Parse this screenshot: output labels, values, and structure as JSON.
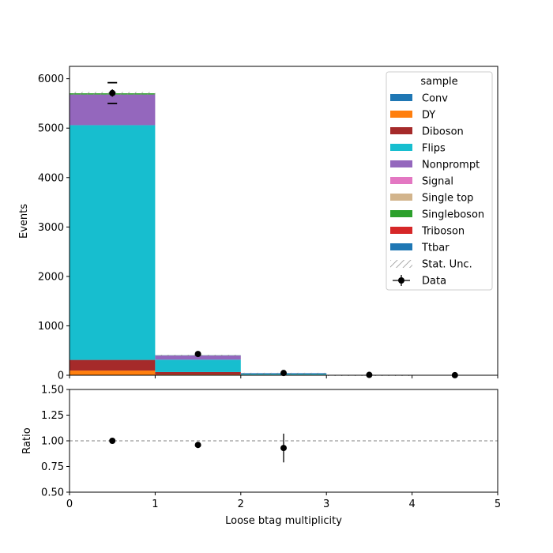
{
  "chart_data": {
    "type": "bar",
    "stacked": true,
    "x_edges": [
      0,
      1,
      2,
      3,
      4,
      5
    ],
    "bin_centers": [
      0.5,
      1.5,
      2.5,
      3.5,
      4.5
    ],
    "xlabel": "Loose btag multiplicity",
    "xlim": [
      0,
      5
    ],
    "xticks": [
      "0",
      "1",
      "2",
      "3",
      "4",
      "5"
    ],
    "top": {
      "ylabel": "Events",
      "ylim": [
        0,
        6250
      ],
      "yticks": [
        "0",
        "1000",
        "2000",
        "3000",
        "4000",
        "5000",
        "6000"
      ],
      "ytick_values": [
        0,
        1000,
        2000,
        3000,
        4000,
        5000,
        6000
      ]
    },
    "bottom": {
      "ylabel": "Ratio",
      "ylim": [
        0.5,
        1.5
      ],
      "yticks": [
        "0.50",
        "0.75",
        "1.00",
        "1.25",
        "1.50"
      ],
      "ytick_values": [
        0.5,
        0.75,
        1.0,
        1.25,
        1.5
      ],
      "reference_line": 1.0,
      "ratio_points": [
        {
          "x": 0.5,
          "y": 1.0,
          "yerr": 0.0
        },
        {
          "x": 1.5,
          "y": 0.96,
          "yerr": 0.03
        },
        {
          "x": 2.5,
          "y": 0.93,
          "yerr": 0.14
        }
      ]
    },
    "series": [
      {
        "name": "Conv",
        "color": "#1f77b4",
        "values": [
          0,
          0,
          0,
          0,
          0
        ]
      },
      {
        "name": "DY",
        "color": "#ff7f0e",
        "values": [
          95,
          15,
          2,
          0,
          0
        ]
      },
      {
        "name": "Diboson",
        "color": "#a52a2a",
        "values": [
          215,
          50,
          10,
          1,
          0
        ]
      },
      {
        "name": "Flips",
        "color": "#17becf",
        "values": [
          4750,
          250,
          25,
          4,
          1
        ]
      },
      {
        "name": "Nonprompt",
        "color": "#9467bd",
        "values": [
          620,
          85,
          10,
          2,
          0
        ]
      },
      {
        "name": "Signal",
        "color": "#e377c2",
        "values": [
          0,
          0,
          0,
          0,
          0
        ]
      },
      {
        "name": "Single top",
        "color": "#d2b48c",
        "values": [
          0,
          0,
          0,
          0,
          0
        ]
      },
      {
        "name": "Singleboson",
        "color": "#2ca02c",
        "values": [
          25,
          3,
          0,
          0,
          0
        ]
      },
      {
        "name": "Triboson",
        "color": "#d62728",
        "values": [
          0,
          0,
          0,
          0,
          0
        ]
      },
      {
        "name": "Ttbar",
        "color": "#1f77b4",
        "values": [
          0,
          2,
          1,
          0,
          0
        ]
      }
    ],
    "stat_unc": {
      "label": "Stat. Unc.",
      "values": [
        25,
        8,
        2,
        1,
        0
      ]
    },
    "data": {
      "label": "Data",
      "values": [
        5710,
        430,
        45,
        7,
        1
      ],
      "errors": [
        75,
        20,
        7,
        3,
        1
      ],
      "outer_band": [
        210,
        0,
        0,
        0,
        0
      ]
    },
    "legend": {
      "title": "sample",
      "placement": "top-right"
    },
    "grid": false
  }
}
